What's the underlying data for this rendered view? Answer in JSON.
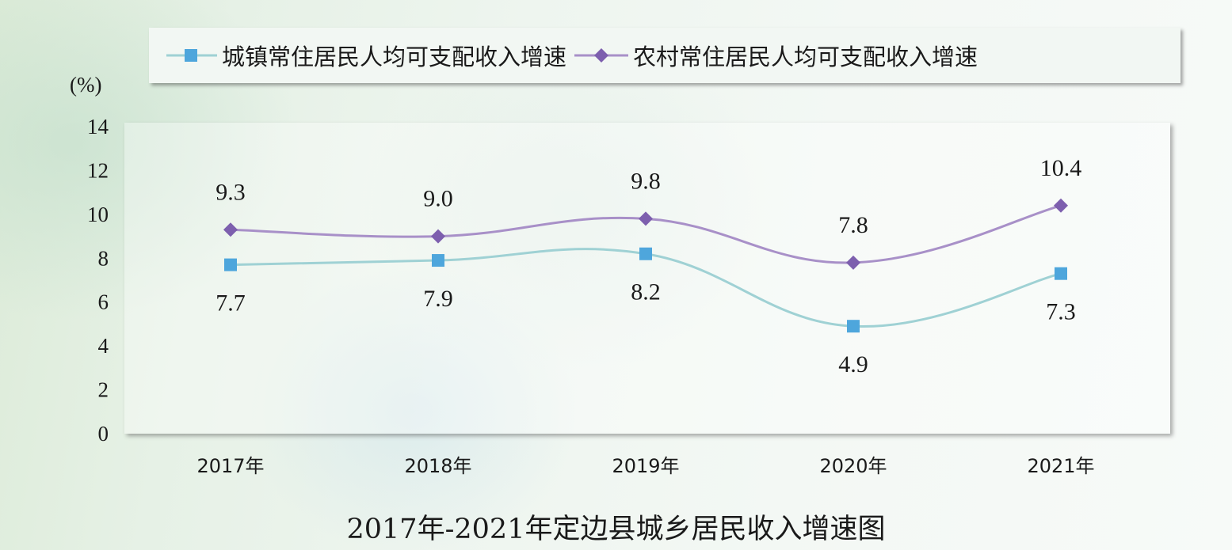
{
  "chart_data": {
    "type": "line",
    "title": "2017年-2021年定边县城乡居民收入增速图",
    "ylabel": "(%)",
    "xlabel": "",
    "categories": [
      "2017年",
      "2018年",
      "2019年",
      "2020年",
      "2021年"
    ],
    "ylim": [
      0,
      14
    ],
    "yticks": [
      0,
      2,
      4,
      6,
      8,
      10,
      12,
      14
    ],
    "series": [
      {
        "name": "城镇常住居民人均可支配收入增速",
        "values": [
          7.7,
          7.9,
          8.2,
          4.9,
          7.3
        ],
        "labels": [
          "7.7",
          "7.9",
          "8.2",
          "4.9",
          "7.3"
        ],
        "color": "#9fd1d4",
        "marker_color": "#4ea6dc",
        "marker": "square"
      },
      {
        "name": "农村常住居民人均可支配收入增速",
        "values": [
          9.3,
          9.0,
          9.8,
          7.8,
          10.4
        ],
        "labels": [
          "9.3",
          "9.0",
          "9.8",
          "7.8",
          "10.4"
        ],
        "color": "#a890c8",
        "marker_color": "#7d5fae",
        "marker": "diamond"
      }
    ],
    "legend_position": "top",
    "grid": false
  }
}
